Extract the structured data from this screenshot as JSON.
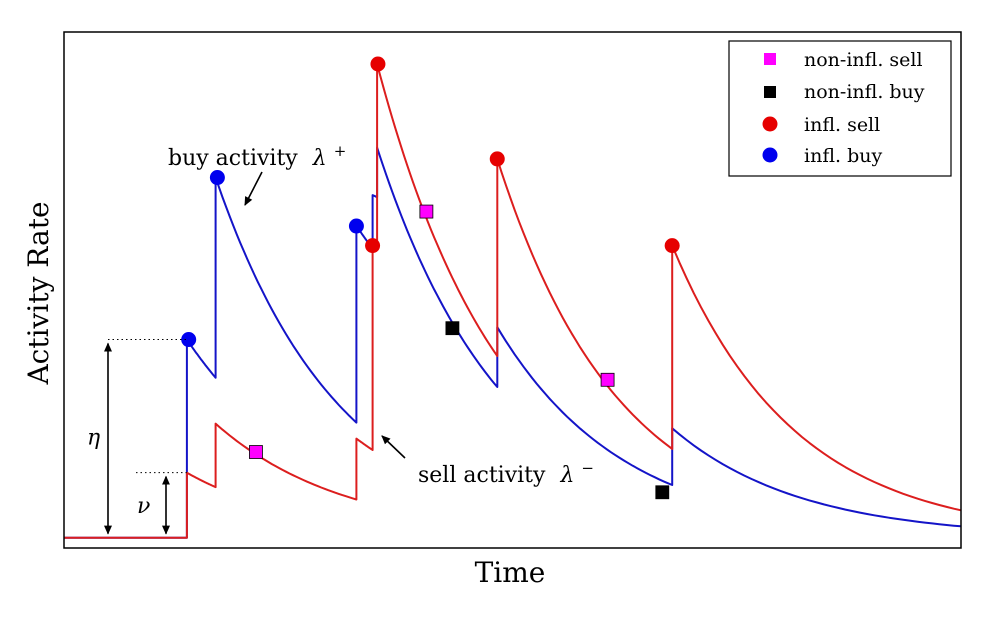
{
  "chart_data": {
    "type": "line",
    "xlabel": "Time",
    "ylabel": "Activity Rate",
    "grid": false,
    "legend_position": "top-right",
    "colors": {
      "buy": "#1414c8",
      "sell": "#dc1e1e",
      "influential_sell_marker": "#e60000",
      "influential_buy_marker": "#0000ee",
      "non_influential_sell_marker": "#ff00ff",
      "non_influential_buy_marker": "#000000"
    },
    "legend": [
      {
        "key": "nonInflSell",
        "label": "non-infl. sell",
        "marker": "square",
        "color": "#ff00ff"
      },
      {
        "key": "nonInflBuy",
        "label": "non-infl. buy",
        "marker": "square",
        "color": "#000000"
      },
      {
        "key": "inflSell",
        "label": "infl. sell",
        "marker": "circle",
        "color": "#e60000"
      },
      {
        "key": "inflBuy",
        "label": "infl. buy",
        "marker": "circle",
        "color": "#0000ee"
      }
    ],
    "xlim": [
      0,
      100
    ],
    "ylim": [
      0,
      100
    ],
    "baseline": 2,
    "decay_rate": 0.07,
    "series": [
      {
        "key": "buy",
        "segments": [
          {
            "x0": 0,
            "x1": 13.7,
            "y0": 2,
            "end": 2
          },
          {
            "x0": 13.7,
            "x1": 16.9,
            "y0": 40.4,
            "end": 33
          },
          {
            "x0": 16.9,
            "x1": 32.6,
            "y0": 71.8,
            "end": 24.3
          },
          {
            "x0": 32.6,
            "x1": 34.4,
            "y0": 62.4,
            "end": 58
          },
          {
            "x0": 34.4,
            "x1": 34.9,
            "y0": 68.4,
            "end": 68
          },
          {
            "x0": 34.9,
            "x1": 48.3,
            "y0": 77.6,
            "end": 31.2
          },
          {
            "x0": 48.3,
            "x1": 67.8,
            "y0": 42.8,
            "end": 12.2
          },
          {
            "x0": 67.8,
            "x1": 100,
            "y0": 23.2,
            "end": 4.2
          }
        ]
      },
      {
        "key": "sell",
        "segments": [
          {
            "x0": 0,
            "x1": 13.7,
            "y0": 2,
            "end": 2
          },
          {
            "x0": 13.7,
            "x1": 16.9,
            "y0": 14.6,
            "end": 11.8
          },
          {
            "x0": 16.9,
            "x1": 32.6,
            "y0": 24.1,
            "end": 9.4
          },
          {
            "x0": 32.6,
            "x1": 34.4,
            "y0": 21.2,
            "end": 19
          },
          {
            "x0": 34.4,
            "x1": 34.9,
            "y0": 58.6,
            "end": 58
          },
          {
            "x0": 34.9,
            "x1": 48.3,
            "y0": 93.8,
            "end": 37.2
          },
          {
            "x0": 48.3,
            "x1": 67.8,
            "y0": 75.4,
            "end": 19.2
          },
          {
            "x0": 67.8,
            "x1": 100,
            "y0": 58.6,
            "end": 7.3
          }
        ]
      }
    ],
    "markers": [
      {
        "type": "inflBuy",
        "x": 13.9,
        "y": 40.4
      },
      {
        "type": "inflBuy",
        "x": 17.1,
        "y": 71.8
      },
      {
        "type": "inflBuy",
        "x": 32.6,
        "y": 62.4
      },
      {
        "type": "inflSell",
        "x": 34.4,
        "y": 58.6
      },
      {
        "type": "inflSell",
        "x": 35.0,
        "y": 93.8
      },
      {
        "type": "inflSell",
        "x": 48.3,
        "y": 75.4
      },
      {
        "type": "inflSell",
        "x": 67.8,
        "y": 58.6
      },
      {
        "type": "nonInflSell",
        "x": 21.4,
        "y": 18.6
      },
      {
        "type": "nonInflSell",
        "x": 40.4,
        "y": 65.2
      },
      {
        "type": "nonInflSell",
        "x": 60.6,
        "y": 32.6
      },
      {
        "type": "nonInflBuy",
        "x": 43.3,
        "y": 42.6
      },
      {
        "type": "nonInflBuy",
        "x": 66.7,
        "y": 10.8
      }
    ],
    "annotations": {
      "buy_activity": "buy activity",
      "buy_symbol": "λ",
      "buy_superscript": "+",
      "sell_activity": "sell activity",
      "sell_symbol": "λ",
      "sell_superscript": "−",
      "eta": "η",
      "nu": "ν"
    },
    "brackets": {
      "eta": {
        "x": 13.7,
        "y_low": 2,
        "y_high": 40.4
      },
      "nu": {
        "x": 13.7,
        "y_low": 2,
        "y_high": 14.6
      }
    }
  }
}
